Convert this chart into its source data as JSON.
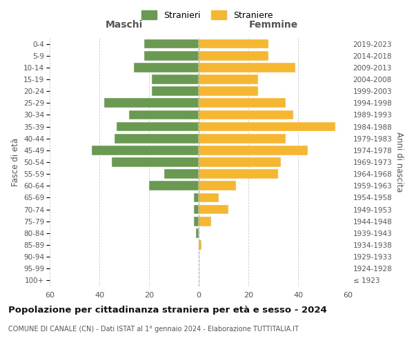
{
  "age_groups": [
    "100+",
    "95-99",
    "90-94",
    "85-89",
    "80-84",
    "75-79",
    "70-74",
    "65-69",
    "60-64",
    "55-59",
    "50-54",
    "45-49",
    "40-44",
    "35-39",
    "30-34",
    "25-29",
    "20-24",
    "15-19",
    "10-14",
    "5-9",
    "0-4"
  ],
  "birth_years": [
    "≤ 1923",
    "1924-1928",
    "1929-1933",
    "1934-1938",
    "1939-1943",
    "1944-1948",
    "1949-1953",
    "1954-1958",
    "1959-1963",
    "1964-1968",
    "1969-1973",
    "1974-1978",
    "1979-1983",
    "1984-1988",
    "1989-1993",
    "1994-1998",
    "1999-2003",
    "2004-2008",
    "2009-2013",
    "2014-2018",
    "2019-2023"
  ],
  "maschi": [
    0,
    0,
    0,
    0,
    1,
    2,
    2,
    2,
    20,
    14,
    35,
    43,
    34,
    33,
    28,
    38,
    19,
    19,
    26,
    22,
    22
  ],
  "femmine": [
    0,
    0,
    0,
    1,
    0,
    5,
    12,
    8,
    15,
    32,
    33,
    44,
    35,
    55,
    38,
    35,
    24,
    24,
    39,
    28,
    28
  ],
  "color_maschi": "#6a9a52",
  "color_femmine": "#f5b731",
  "title": "Popolazione per cittadinanza straniera per età e sesso - 2024",
  "subtitle": "COMUNE DI CANALE (CN) - Dati ISTAT al 1° gennaio 2024 - Elaborazione TUTTITALIA.IT",
  "xlabel_left": "Maschi",
  "xlabel_right": "Femmine",
  "ylabel_left": "Fasce di età",
  "ylabel_right": "Anni di nascita",
  "legend_maschi": "Stranieri",
  "legend_femmine": "Straniere",
  "xlim": 60,
  "background_color": "#ffffff",
  "grid_color": "#cccccc"
}
